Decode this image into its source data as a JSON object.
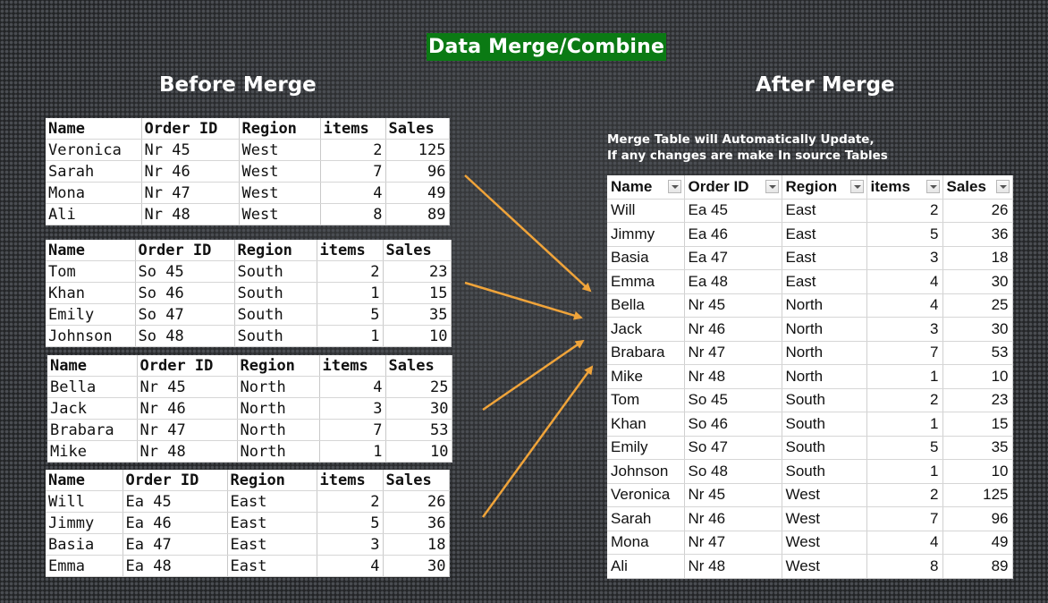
{
  "title": "Data Merge/Combine",
  "before_heading": "Before Merge",
  "after_heading": "After Merge",
  "note_lines": [
    "Merge Table will Automatically Update,",
    "If any changes are make In source Tables"
  ],
  "columns": [
    "Name",
    "Order ID",
    "Region",
    "items",
    "Sales"
  ],
  "accent_colors": {
    "title_bg": "#0b7a14",
    "arrow": "#f0a43a"
  },
  "source_tables": [
    {
      "rows": [
        [
          "Veronica",
          "Nr 45",
          "West",
          "2",
          "125"
        ],
        [
          "Sarah",
          "Nr 46",
          "West",
          "7",
          "96"
        ],
        [
          "Mona",
          "Nr 47",
          "West",
          "4",
          "49"
        ],
        [
          "Ali",
          "Nr 48",
          "West",
          "8",
          "89"
        ]
      ]
    },
    {
      "rows": [
        [
          "Tom",
          "So 45",
          "South",
          "2",
          "23"
        ],
        [
          "Khan",
          "So 46",
          "South",
          "1",
          "15"
        ],
        [
          "Emily",
          "So 47",
          "South",
          "5",
          "35"
        ],
        [
          "Johnson",
          "So 48",
          "South",
          "1",
          "10"
        ]
      ]
    },
    {
      "rows": [
        [
          "Bella",
          "Nr 45",
          "North",
          "4",
          "25"
        ],
        [
          "Jack",
          "Nr 46",
          "North",
          "3",
          "30"
        ],
        [
          "Brabara",
          "Nr 47",
          "North",
          "7",
          "53"
        ],
        [
          "Mike",
          "Nr 48",
          "North",
          "1",
          "10"
        ]
      ]
    },
    {
      "rows": [
        [
          "Will",
          "Ea 45",
          "East",
          "2",
          "26"
        ],
        [
          "Jimmy",
          "Ea 46",
          "East",
          "5",
          "36"
        ],
        [
          "Basia",
          "Ea 47",
          "East",
          "3",
          "18"
        ],
        [
          "Emma",
          "Ea 48",
          "East",
          "4",
          "30"
        ]
      ]
    }
  ],
  "merged_rows": [
    [
      "Will",
      "Ea 45",
      "East",
      "2",
      "26"
    ],
    [
      "Jimmy",
      "Ea 46",
      "East",
      "5",
      "36"
    ],
    [
      "Basia",
      "Ea 47",
      "East",
      "3",
      "18"
    ],
    [
      "Emma",
      "Ea 48",
      "East",
      "4",
      "30"
    ],
    [
      "Bella",
      "Nr 45",
      "North",
      "4",
      "25"
    ],
    [
      "Jack",
      "Nr 46",
      "North",
      "3",
      "30"
    ],
    [
      "Brabara",
      "Nr 47",
      "North",
      "7",
      "53"
    ],
    [
      "Mike",
      "Nr 48",
      "North",
      "1",
      "10"
    ],
    [
      "Tom",
      "So 45",
      "South",
      "2",
      "23"
    ],
    [
      "Khan",
      "So 46",
      "South",
      "1",
      "15"
    ],
    [
      "Emily",
      "So 47",
      "South",
      "5",
      "35"
    ],
    [
      "Johnson",
      "So 48",
      "South",
      "1",
      "10"
    ],
    [
      "Veronica",
      "Nr 45",
      "West",
      "2",
      "125"
    ],
    [
      "Sarah",
      "Nr 46",
      "West",
      "7",
      "96"
    ],
    [
      "Mona",
      "Nr 47",
      "West",
      "4",
      "49"
    ],
    [
      "Ali",
      "Nr 48",
      "West",
      "8",
      "89"
    ]
  ]
}
